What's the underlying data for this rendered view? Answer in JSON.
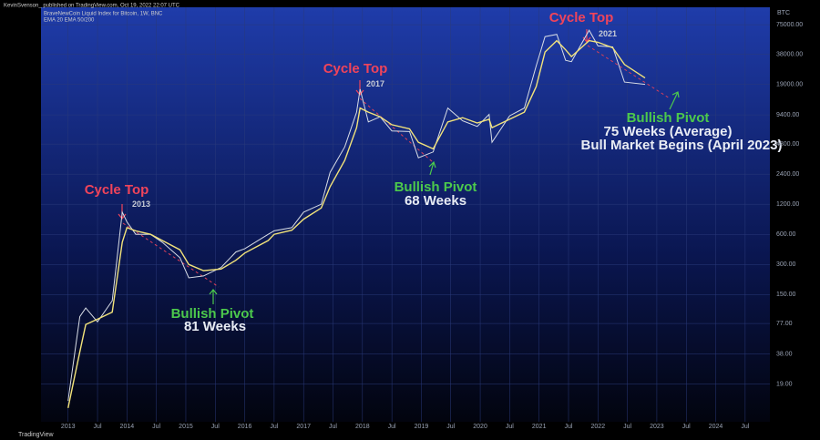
{
  "header": {
    "publisher": "KevinSvenson_ published on TradingView.com, Oct 19, 2022 22:07 UTC",
    "symbol": "BraveNewCoin Liquid Index for Bitcoin, 1W, BNC",
    "indicators": "EMA 20 EMA 50/200"
  },
  "footer": "TradingView",
  "annotations": {
    "top1": "Cycle Top",
    "top1_year": "2013",
    "top2": "Cycle Top",
    "top2_year": "2017",
    "top3": "Cycle Top",
    "top3_year": "2021",
    "pivot1": "Bullish Pivot",
    "pivot1_weeks": "81 Weeks",
    "pivot2": "Bullish Pivot",
    "pivot2_weeks": "68 Weeks",
    "pivot3": "Bullish Pivot",
    "pivot3_weeks": "75 Weeks (Average)",
    "pivot3_note": "Bull Market Begins (April 2023)"
  },
  "chart_data": {
    "type": "line",
    "log_y": true,
    "y_unit": "BTC",
    "x": [
      2013.0,
      2013.2,
      2013.3,
      2013.5,
      2013.75,
      2013.92,
      2014.0,
      2014.15,
      2014.4,
      2014.6,
      2014.9,
      2015.05,
      2015.3,
      2015.6,
      2015.85,
      2016.0,
      2016.4,
      2016.5,
      2016.8,
      2017.0,
      2017.3,
      2017.45,
      2017.7,
      2017.9,
      2017.96,
      2018.1,
      2018.3,
      2018.5,
      2018.8,
      2018.95,
      2019.2,
      2019.45,
      2019.7,
      2019.95,
      2020.15,
      2020.2,
      2020.5,
      2020.75,
      2020.95,
      2021.1,
      2021.3,
      2021.45,
      2021.55,
      2021.85,
      2022.0,
      2022.25,
      2022.45,
      2022.8
    ],
    "series": [
      {
        "name": "BNC",
        "color": "#d8dde6",
        "values": [
          13,
          90,
          110,
          80,
          130,
          1000,
          800,
          600,
          600,
          500,
          350,
          220,
          230,
          280,
          400,
          430,
          600,
          650,
          700,
          1000,
          1200,
          2500,
          4500,
          10000,
          17000,
          8000,
          9000,
          6500,
          6400,
          3500,
          4000,
          11000,
          8200,
          7200,
          9500,
          5000,
          9200,
          11000,
          29000,
          57000,
          60000,
          33000,
          32000,
          66000,
          46000,
          45000,
          20000,
          19000
        ]
      },
      {
        "name": "EMA 20",
        "color": "#f2e37a",
        "values": [
          11,
          40,
          75,
          85,
          100,
          500,
          700,
          650,
          600,
          520,
          420,
          300,
          260,
          270,
          330,
          390,
          520,
          600,
          660,
          850,
          1100,
          1800,
          3300,
          7000,
          11000,
          10000,
          9000,
          7500,
          6800,
          5000,
          4300,
          8000,
          8800,
          7800,
          8500,
          7000,
          8500,
          10000,
          18000,
          40000,
          52000,
          42000,
          36000,
          52000,
          50000,
          44000,
          30000,
          22000
        ]
      }
    ],
    "xlim": [
      2012.54,
      2024.92
    ],
    "ylim": [
      8,
      112000
    ],
    "xticks": [
      2013,
      {
        "value": 2013.5,
        "label": "Jul"
      },
      2014,
      {
        "value": 2014.5,
        "label": "Jul"
      },
      2015,
      {
        "value": 2015.5,
        "label": "Jul"
      },
      2016,
      {
        "value": 2016.5,
        "label": "Jul"
      },
      2017,
      {
        "value": 2017.5,
        "label": "Jul"
      },
      2018,
      {
        "value": 2018.5,
        "label": "Jul"
      },
      2019,
      {
        "value": 2019.5,
        "label": "Jul"
      },
      2020,
      {
        "value": 2020.5,
        "label": "Jul"
      },
      2021,
      {
        "value": 2021.5,
        "label": "Jul"
      },
      2022,
      {
        "value": 2022.5,
        "label": "Jul"
      },
      2023,
      {
        "value": 2023.5,
        "label": "Jul"
      },
      2024,
      {
        "value": 2024.5,
        "label": "Jul"
      }
    ],
    "yticks": [
      {
        "value": 75000,
        "label": "75000.00"
      },
      {
        "value": 38000,
        "label": "38000.00"
      },
      {
        "value": 19000,
        "label": "19000.00"
      },
      {
        "value": 9400,
        "label": "9400.00"
      },
      {
        "value": 4800,
        "label": "4800.00"
      },
      {
        "value": 2400,
        "label": "2400.00"
      },
      {
        "value": 1200,
        "label": "1200.00"
      },
      {
        "value": 600,
        "label": "600.00"
      },
      {
        "value": 300,
        "label": "300.00"
      },
      {
        "value": 150,
        "label": "150.00"
      },
      {
        "value": 77,
        "label": "77.00"
      },
      {
        "value": 38,
        "label": "38.00"
      },
      {
        "value": 19,
        "label": "19.00"
      }
    ]
  }
}
